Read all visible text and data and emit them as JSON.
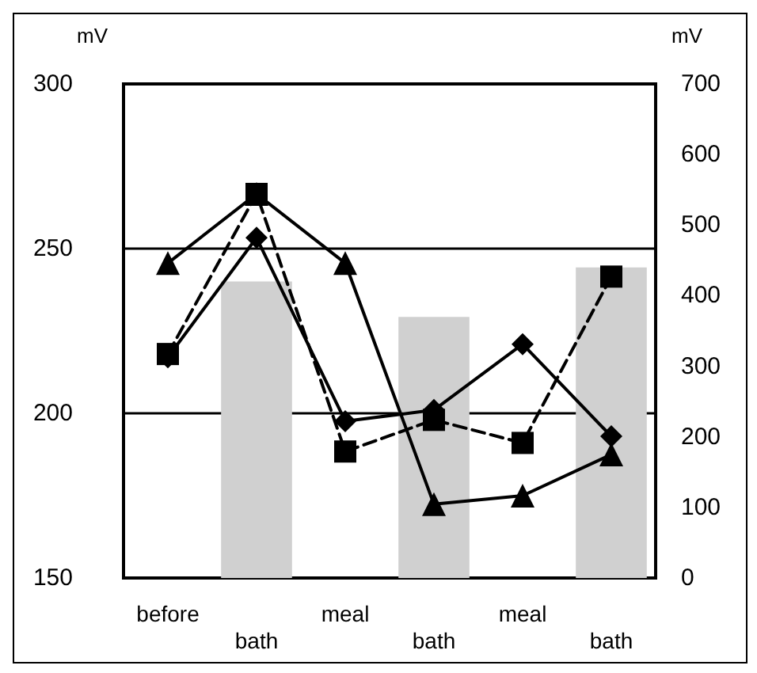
{
  "chart_data": {
    "type": "line",
    "ylabel": "mV",
    "y2label": "mV",
    "categories": [
      "before",
      "bath",
      "meal",
      "bath",
      "meal",
      "bath"
    ],
    "ylim": [
      150,
      300
    ],
    "yticks": [
      150,
      200,
      250,
      300
    ],
    "y2lim": [
      0,
      700
    ],
    "y2ticks": [
      0,
      100,
      200,
      300,
      400,
      500,
      600,
      700
    ],
    "grid": "y",
    "series": [
      {
        "type": "bar",
        "axis": "y2",
        "color": "#d0d0d0",
        "values": [
          null,
          420,
          null,
          370,
          null,
          440
        ]
      },
      {
        "color": "#000000",
        "marker": "triangle",
        "line_style": "solid",
        "values": [
          245.6,
          266.6,
          245.6,
          172.4,
          175,
          187.5
        ]
      },
      {
        "color": "#000000",
        "marker": "diamond",
        "line_style": "solid",
        "values": [
          217,
          253.3,
          197.6,
          201,
          221,
          193
        ]
      },
      {
        "color": "#000000",
        "marker": "square",
        "line_style": "dashed",
        "values": [
          218,
          266.6,
          188.4,
          198,
          191,
          241.5
        ]
      }
    ]
  }
}
